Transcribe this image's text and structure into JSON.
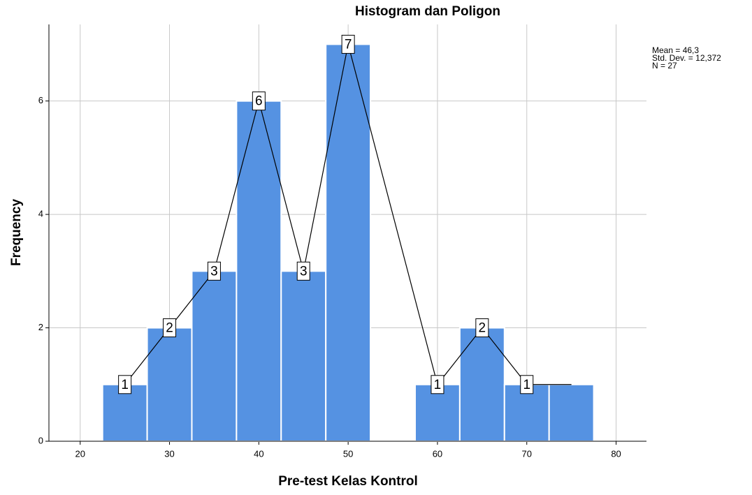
{
  "chart_data": {
    "type": "histogram",
    "title": "Histogram dan Poligon",
    "xlabel": "Pre-test Kelas Kontrol",
    "ylabel": "Frequency",
    "bins": [
      22.5,
      27.5,
      32.5,
      37.5,
      42.5,
      47.5,
      52.5,
      57.5,
      62.5,
      67.5,
      72.5,
      77.5
    ],
    "counts": [
      1,
      2,
      3,
      6,
      3,
      7,
      0,
      1,
      2,
      1,
      1
    ],
    "color": "#5592e2",
    "polygon": {
      "x": [
        25,
        30,
        35,
        40,
        45,
        50,
        60,
        65,
        70,
        75
      ],
      "values": [
        1,
        2,
        3,
        6,
        3,
        7,
        1,
        2,
        1,
        1
      ],
      "value_labels": [
        "1",
        "2",
        "3",
        "6",
        "3",
        "7",
        "1",
        "2",
        "1",
        null
      ],
      "color": "#000000"
    },
    "annotations": [
      "Mean = 46,3",
      "Std. Dev. = 12,372",
      "N = 27"
    ],
    "xlim": [
      16.5,
      83.4
    ],
    "xticks": [
      20,
      30,
      40,
      50,
      60,
      70,
      80
    ],
    "ylim": [
      0,
      7.35
    ],
    "yticks": [
      0,
      2,
      4,
      6
    ],
    "grid": true
  }
}
